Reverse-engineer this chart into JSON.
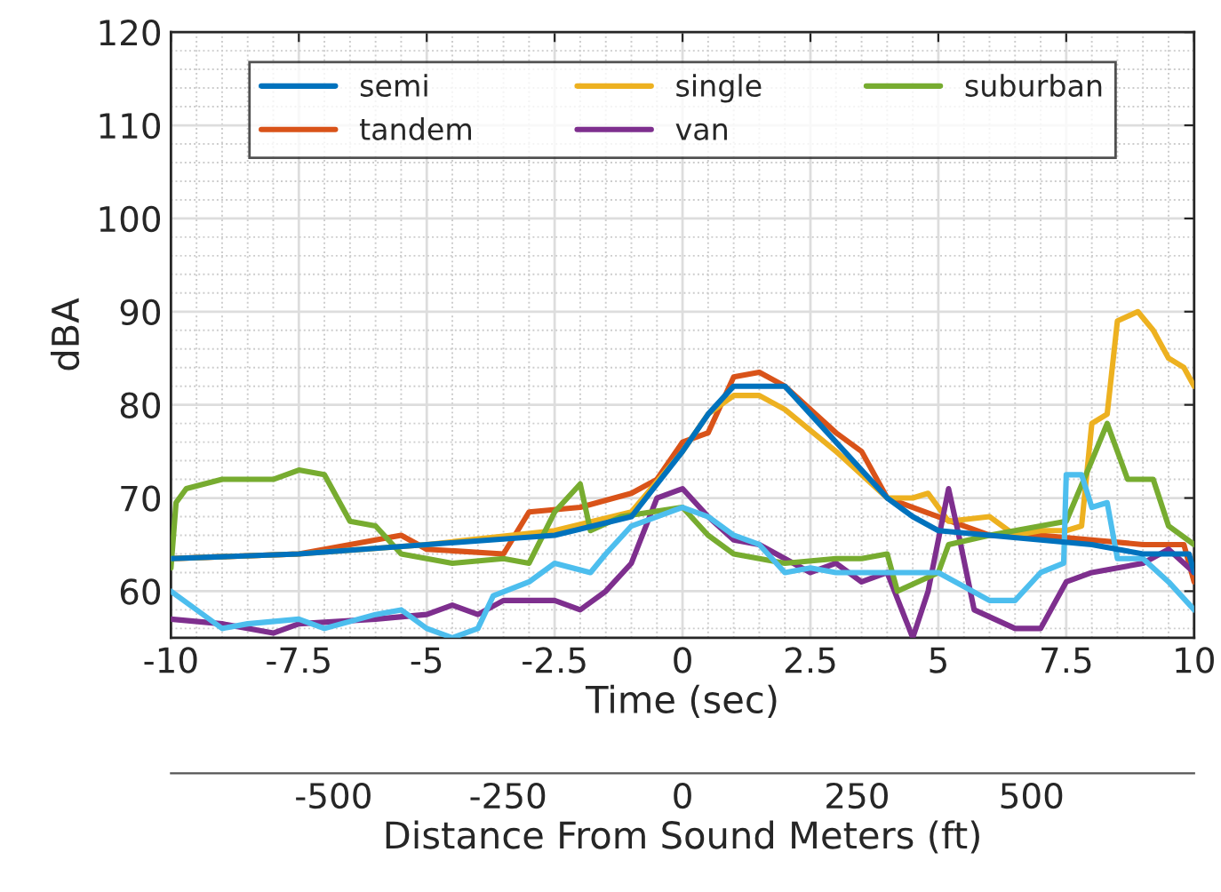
{
  "chart_data": {
    "type": "line",
    "xlabel": "Time (sec)",
    "ylabel": "dBA",
    "x2label": "Distance From Sound Meters (ft)",
    "xlim": [
      -10,
      10
    ],
    "xticks": [
      -10,
      -7.5,
      -5,
      -2.5,
      0,
      2.5,
      5,
      7.5,
      10
    ],
    "ylim": [
      55,
      120
    ],
    "yticks": [
      60,
      70,
      80,
      90,
      100,
      110,
      120
    ],
    "x2lim": [
      -733,
      733
    ],
    "x2ticks": [
      -500,
      -250,
      0,
      250,
      500
    ],
    "grid": true,
    "legend": "top",
    "line_style": "solid",
    "marker": "none",
    "series": [
      {
        "name": "semi",
        "color": "#0072bd",
        "x": [
          -10,
          -7.5,
          -5,
          -2.5,
          -1,
          0,
          0.5,
          1,
          2,
          2.5,
          3.5,
          4,
          4.5,
          5,
          6,
          7,
          8,
          9,
          9.9,
          10
        ],
        "values": [
          63.5,
          64,
          65,
          66,
          68,
          75,
          79,
          82,
          82,
          79,
          73,
          70,
          68,
          66.5,
          66,
          65.5,
          65,
          64,
          64,
          62
        ]
      },
      {
        "name": "tandem",
        "color": "#d95319",
        "x": [
          -10,
          -7.5,
          -5.5,
          -5,
          -3.5,
          -3,
          -2,
          -1,
          -0.5,
          0,
          0.5,
          1,
          1.5,
          2,
          3,
          3.5,
          4,
          4.5,
          5,
          6,
          7,
          8,
          9,
          9.8,
          10
        ],
        "values": [
          63.5,
          64,
          66,
          64.5,
          64,
          68.5,
          69,
          70.5,
          72,
          76,
          77,
          83,
          83.5,
          82,
          77,
          75,
          70,
          69,
          68,
          66,
          66,
          65.5,
          65,
          65,
          61
        ]
      },
      {
        "name": "single",
        "color": "#edb120",
        "x": [
          -10,
          -7.5,
          -5,
          -2.5,
          -1,
          0,
          0.5,
          1,
          1.5,
          2,
          3,
          4,
          4.5,
          4.8,
          5.2,
          6,
          6.5,
          7,
          7.5,
          7.8,
          8,
          8.3,
          8.5,
          8.9,
          9.2,
          9.5,
          9.8,
          10
        ],
        "values": [
          63.5,
          64,
          65,
          66.5,
          68.5,
          75,
          79,
          81,
          81,
          79.5,
          75,
          70,
          70,
          70.5,
          67.5,
          68,
          66,
          66.5,
          66.5,
          67,
          78,
          79,
          89,
          90,
          88,
          85,
          84,
          82
        ]
      },
      {
        "name": "van",
        "color": "#7e2f8e",
        "x": [
          -10,
          -9,
          -8,
          -7.5,
          -6,
          -5,
          -4.5,
          -4,
          -3.5,
          -2.5,
          -2,
          -1.5,
          -1,
          -0.5,
          0,
          0.5,
          1,
          1.5,
          2.5,
          3,
          3.5,
          4,
          4.5,
          4.8,
          5.2,
          5.4,
          5.7,
          6.5,
          7,
          7.5,
          8,
          9,
          9.5,
          10
        ],
        "values": [
          57,
          56.5,
          55.5,
          56.5,
          57,
          57.5,
          58.5,
          57.5,
          59,
          59,
          58,
          60,
          63,
          70,
          71,
          68,
          65.5,
          65,
          62,
          63,
          61,
          62,
          55,
          60,
          71,
          66,
          58,
          56,
          56,
          61,
          62,
          63,
          64.5,
          62
        ]
      },
      {
        "name": "suburban",
        "color": "#77ac30",
        "x": [
          -10,
          -9.9,
          -9.7,
          -9,
          -8,
          -7.5,
          -7,
          -6.5,
          -6,
          -5.5,
          -4.5,
          -3.5,
          -3,
          -2.5,
          -2,
          -1.8,
          -1.2,
          0,
          0.5,
          1,
          2,
          3,
          3.5,
          4,
          4.2,
          5,
          5.2,
          6,
          7,
          7.5,
          8,
          8.3,
          8.7,
          9.2,
          9.5,
          10
        ],
        "values": [
          62.5,
          69.5,
          71,
          72,
          72,
          73,
          72.5,
          67.5,
          67,
          64,
          63,
          63.5,
          63,
          68.5,
          71.5,
          66.5,
          68,
          69,
          66,
          64,
          63,
          63.5,
          63.5,
          64,
          60,
          62,
          65,
          66,
          67,
          67.5,
          74,
          78,
          72,
          72,
          67,
          65
        ]
      },
      {
        "color": "#4dbeee",
        "x": [
          -10,
          -9.5,
          -9,
          -8.5,
          -7.5,
          -7,
          -6,
          -5.5,
          -5,
          -4.5,
          -4,
          -3.7,
          -3,
          -2.5,
          -1.8,
          -1.5,
          -1,
          -0.5,
          0,
          0.5,
          1,
          1.5,
          2,
          2.5,
          3,
          4,
          5,
          6,
          6.5,
          7,
          7.45,
          7.5,
          7.8,
          8,
          8.3,
          8.5,
          9,
          9.5,
          10
        ],
        "values": [
          60,
          58,
          56,
          56.5,
          57,
          56,
          57.5,
          58,
          56,
          55,
          56,
          59.5,
          61,
          63,
          62,
          64,
          67,
          68,
          69,
          68,
          66,
          65,
          62,
          62.5,
          62,
          62,
          62,
          59,
          59,
          62,
          63,
          72.5,
          72.5,
          69,
          69.5,
          63.5,
          63.5,
          61,
          58
        ]
      }
    ]
  }
}
